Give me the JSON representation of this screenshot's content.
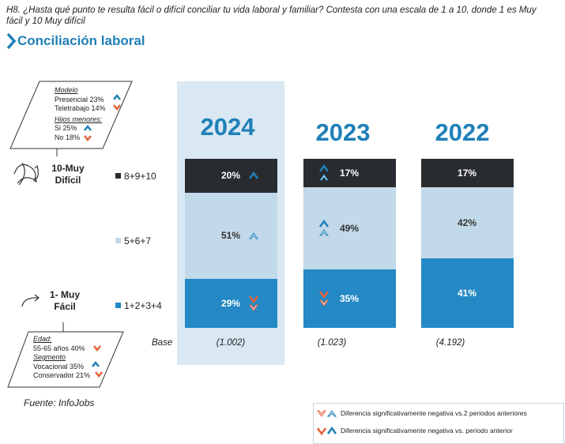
{
  "question": "H8. ¿Hasta qué punto te resulta fácil o difícil conciliar tu vida laboral y familiar? Contesta con una escala de 1 a 10, donde 1 es Muy fácil y 10 Muy difícil",
  "section_title": "Conciliación laboral",
  "side": {
    "top_line1": "10-Muy",
    "top_line2": "Difícil",
    "bottom_line1": "1- Muy",
    "bottom_line2": "Fácil"
  },
  "box_top": {
    "head1": "Modelo",
    "line1": "Presencial 23%",
    "line2": "Teletrabajo 14%",
    "head2": "Hijos menores:",
    "line3": "Si 25%",
    "line4": "No 18%"
  },
  "box_bottom": {
    "head1": "Edad:",
    "line1": "55-65 años 40%",
    "head2": "Segmento",
    "line2": "Vocacional 35%",
    "line3": "Conservador 21%"
  },
  "base_label": "Base",
  "source": "Fuente: InfoJobs",
  "legend": {
    "row1": "Diferencia significativamente negativa vs.2 periodos anteriores",
    "row2": "Diferencia significativamente negativa vs. periodo anterior"
  },
  "colors": {
    "top": "#282b30",
    "mid": "#c2d9ea",
    "bottom": "#2489c5",
    "highlight_bg": "#d9e8f2",
    "title_blue": "#1f80b8",
    "arrow_blue": "#1f80b8",
    "arrow_red": "#e4623c"
  },
  "chart_data": {
    "type": "bar",
    "stacked": true,
    "categories": [
      "2024",
      "2023",
      "2022"
    ],
    "bases": [
      "(1.002)",
      "(1.023)",
      "(4.192)"
    ],
    "series": [
      {
        "name": "8+9+10",
        "values": [
          20,
          17,
          17
        ],
        "labels": [
          "20%",
          "17%",
          "17%"
        ]
      },
      {
        "name": "5+6+7",
        "values": [
          51,
          49,
          42
        ],
        "labels": [
          "51%",
          "49%",
          "42%"
        ]
      },
      {
        "name": "1+2+3+4",
        "values": [
          29,
          35,
          41
        ],
        "labels": [
          "29%",
          "35%",
          "41%"
        ]
      }
    ],
    "significance": [
      {
        "year": "2024",
        "segment": "8+9+10",
        "marks": [
          "up-solid"
        ]
      },
      {
        "year": "2024",
        "segment": "5+6+7",
        "marks": [
          "up-outline"
        ]
      },
      {
        "year": "2024",
        "segment": "1+2+3+4",
        "marks": [
          "down-solid",
          "down-outline"
        ]
      },
      {
        "year": "2023",
        "segment": "8+9+10",
        "marks": [
          "up-solid",
          "up-outline"
        ]
      },
      {
        "year": "2023",
        "segment": "5+6+7",
        "marks": [
          "up-solid",
          "up-outline"
        ]
      },
      {
        "year": "2023",
        "segment": "1+2+3+4",
        "marks": [
          "down-solid",
          "down-outline"
        ]
      }
    ]
  }
}
